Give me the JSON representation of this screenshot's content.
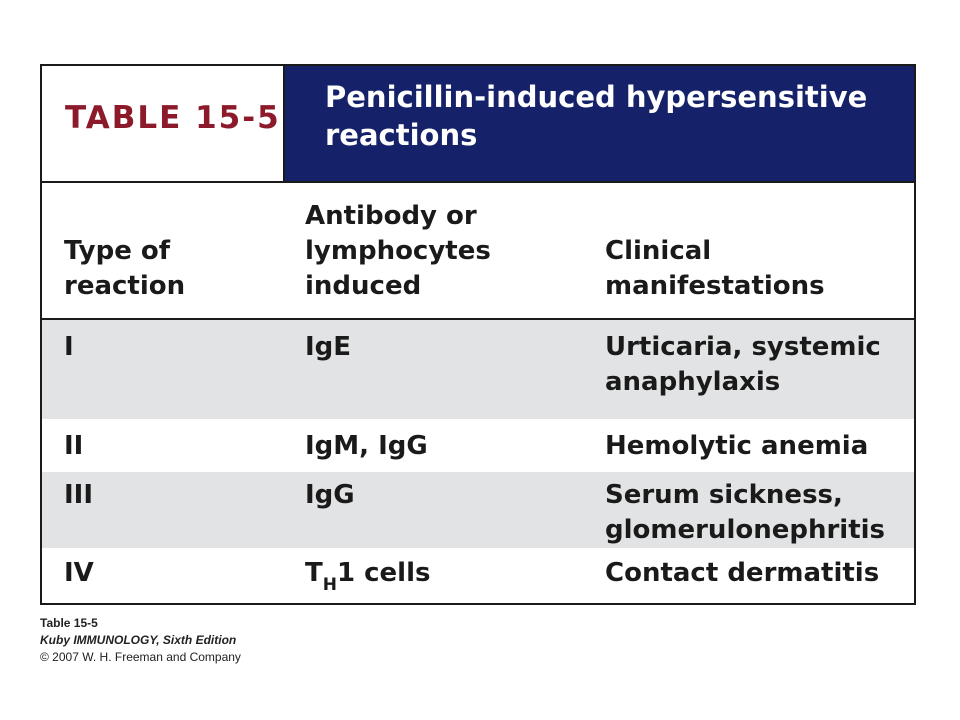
{
  "header": {
    "table_label": "TABLE 15-5",
    "title": "Penicillin-induced hypersensitive reactions"
  },
  "columns": {
    "type": "Type of reaction",
    "antibody": "Antibody or lymphocytes induced",
    "clinical": "Clinical manifestations"
  },
  "rows": [
    {
      "type": "I",
      "antibody": "IgE",
      "clinical": "Urticaria, systemic anaphylaxis"
    },
    {
      "type": "II",
      "antibody": "IgM, IgG",
      "clinical": "Hemolytic anemia"
    },
    {
      "type": "III",
      "antibody": "IgG",
      "clinical": "Serum sickness, glomerulonephritis"
    },
    {
      "type": "IV",
      "antibody_main": "T",
      "antibody_sub": "H",
      "antibody_rest": "1 cells",
      "clinical": "Contact dermatitis"
    }
  ],
  "caption": {
    "line1": "Table 15-5",
    "line2": "Kuby IMMUNOLOGY, Sixth Edition",
    "line3": "© 2007 W. H. Freeman and Company"
  },
  "colors": {
    "title_band": "#15226a",
    "table_label": "#8c1a2b",
    "shaded_row": "#e2e3e4"
  }
}
